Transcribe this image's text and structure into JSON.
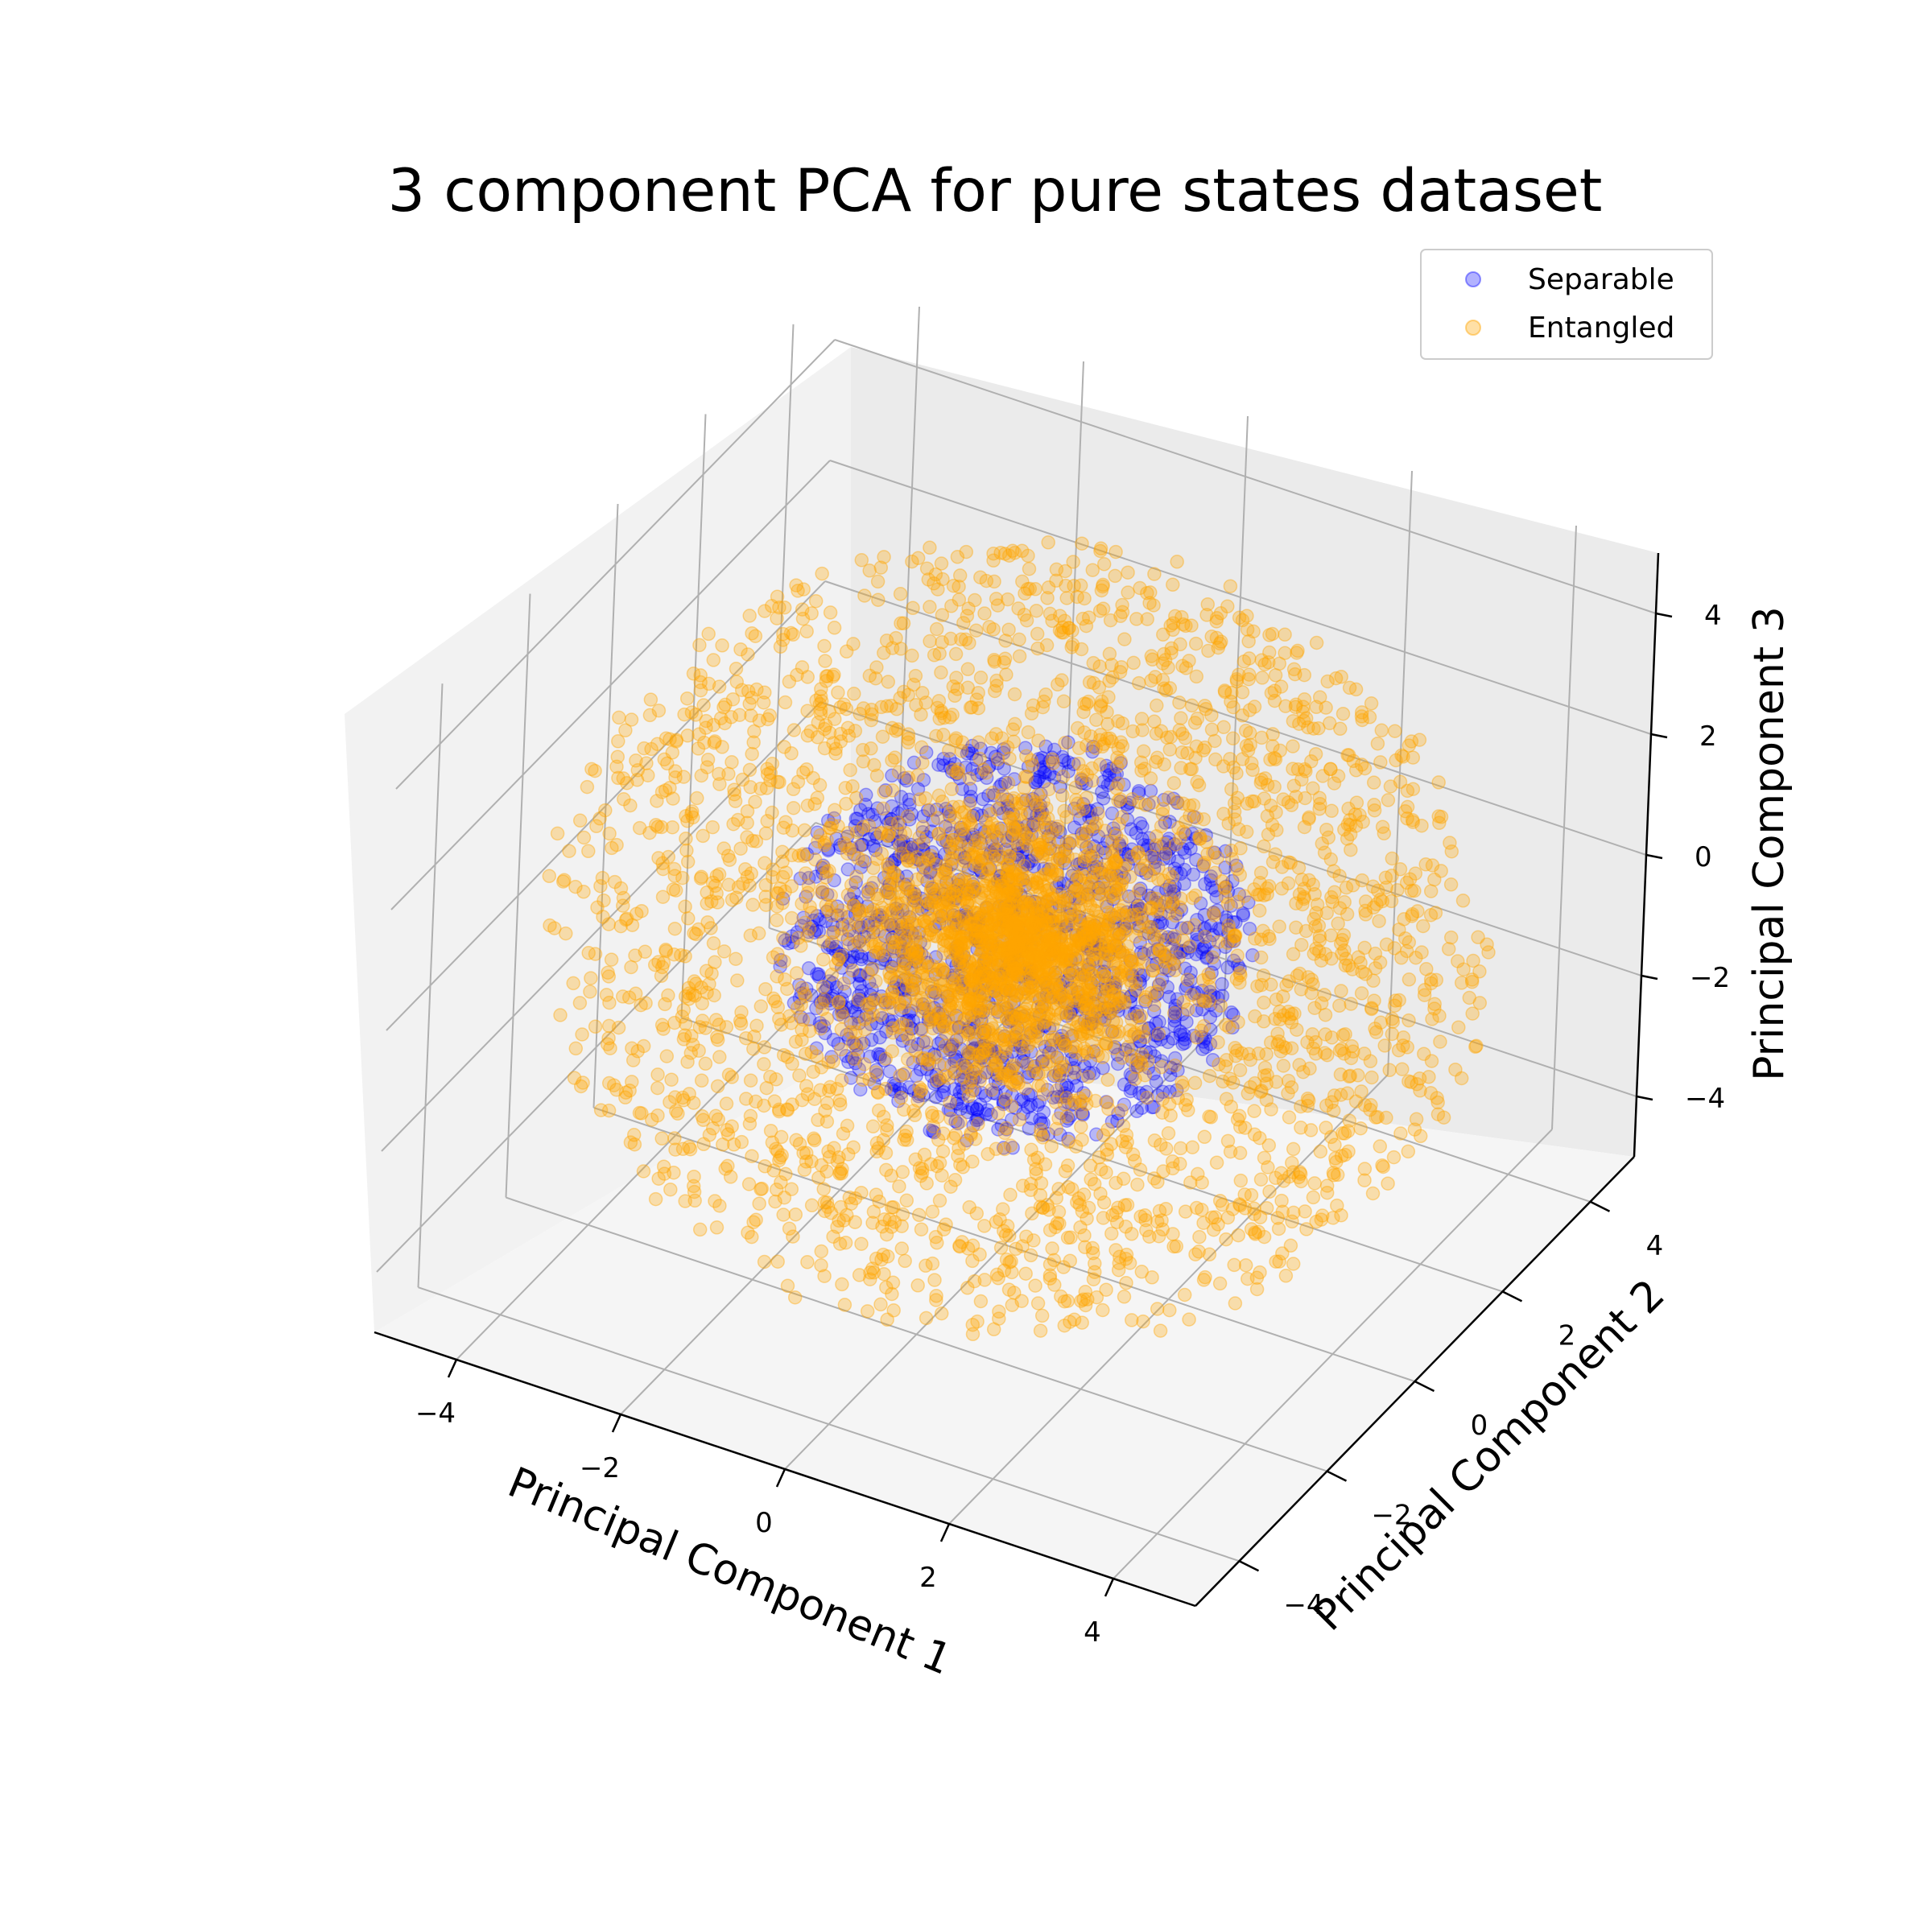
{
  "chart_data": {
    "type": "scatter",
    "title": "3 component PCA for pure states dataset",
    "xlabel": "Principal Component 1",
    "ylabel": "Principal Component 2",
    "zlabel": "Principal Component 3",
    "xlim": [
      -5,
      5
    ],
    "ylim": [
      -5,
      5
    ],
    "zlim": [
      -5,
      5
    ],
    "x_ticks": [
      "−4",
      "−2",
      "0",
      "2",
      "4"
    ],
    "y_ticks": [
      "−4",
      "−2",
      "0",
      "2",
      "4"
    ],
    "z_ticks": [
      "−4",
      "−2",
      "0",
      "2",
      "4"
    ],
    "grid": true,
    "legend_placement": "top-right",
    "series": [
      {
        "name": "Separable",
        "color": "#0000ff",
        "alpha": 0.25,
        "distribution": "ball",
        "center": [
          0,
          0,
          0
        ],
        "radius": 2.6
      },
      {
        "name": "Entangled",
        "color": "#ffa500",
        "alpha": 0.3,
        "distribution": "ball",
        "center": [
          0,
          0,
          0
        ],
        "radius": 5.1
      }
    ]
  }
}
